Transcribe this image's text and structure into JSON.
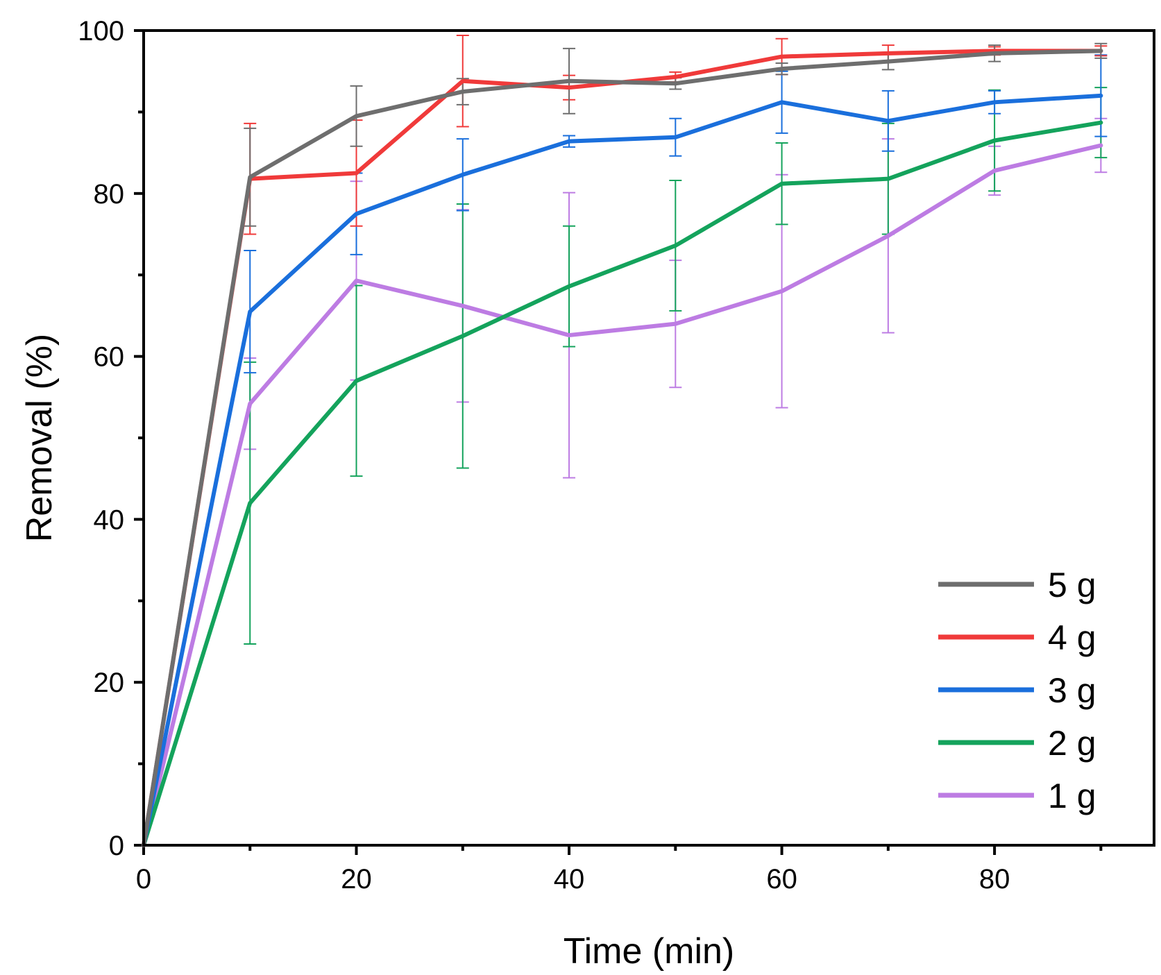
{
  "chart_data": {
    "type": "line",
    "title": "",
    "xlabel": "Time (min)",
    "ylabel": "Removal (%)",
    "xlim": [
      0,
      95
    ],
    "ylim": [
      0,
      100
    ],
    "xticks": [
      0,
      20,
      40,
      60,
      80
    ],
    "xticks_minor": [
      10,
      30,
      50,
      70,
      90
    ],
    "yticks": [
      0,
      20,
      40,
      60,
      80,
      100
    ],
    "yticks_minor": [
      10,
      30,
      50,
      70,
      90
    ],
    "x": [
      0,
      10,
      20,
      30,
      40,
      50,
      60,
      70,
      80,
      90
    ],
    "legend_position": "bottom-right",
    "series": [
      {
        "name": "5 g",
        "color": "#6e6e6e",
        "values": [
          0,
          82,
          89.5,
          92.5,
          93.8,
          93.5,
          95.3,
          96.2,
          97.2,
          97.5
        ],
        "errors": [
          0,
          6,
          3.7,
          1.6,
          4,
          0.7,
          0.7,
          1,
          1,
          0.9
        ]
      },
      {
        "name": "4 g",
        "color": "#f03a3a",
        "values": [
          0,
          81.8,
          82.5,
          93.8,
          93,
          94.3,
          96.8,
          97.2,
          97.5,
          97.5
        ],
        "errors": [
          0,
          6.8,
          6.5,
          5.6,
          1.5,
          0.6,
          2.2,
          1,
          0.5,
          0.6
        ]
      },
      {
        "name": "3 g",
        "color": "#1a6fdc",
        "values": [
          0,
          65.5,
          77.5,
          82.3,
          86.4,
          86.9,
          91.2,
          88.9,
          91.2,
          92
        ],
        "errors": [
          0,
          7.5,
          5,
          4.4,
          0.7,
          2.3,
          3.8,
          3.7,
          1.4,
          5
        ]
      },
      {
        "name": "2 g",
        "color": "#14a35c",
        "values": [
          0,
          42,
          57,
          62.5,
          68.6,
          73.6,
          81.2,
          81.8,
          86.5,
          88.7
        ],
        "errors": [
          0,
          17.3,
          11.7,
          16.2,
          7.4,
          8,
          5,
          6.8,
          6.2,
          4.3
        ]
      },
      {
        "name": "1 g",
        "color": "#bd7ce3",
        "values": [
          0,
          54.2,
          69.3,
          66.2,
          62.6,
          64,
          68,
          74.8,
          82.8,
          85.9
        ],
        "errors": [
          0,
          5.6,
          12.2,
          11.8,
          17.5,
          7.8,
          14.3,
          11.9,
          3,
          3.3
        ]
      }
    ]
  }
}
